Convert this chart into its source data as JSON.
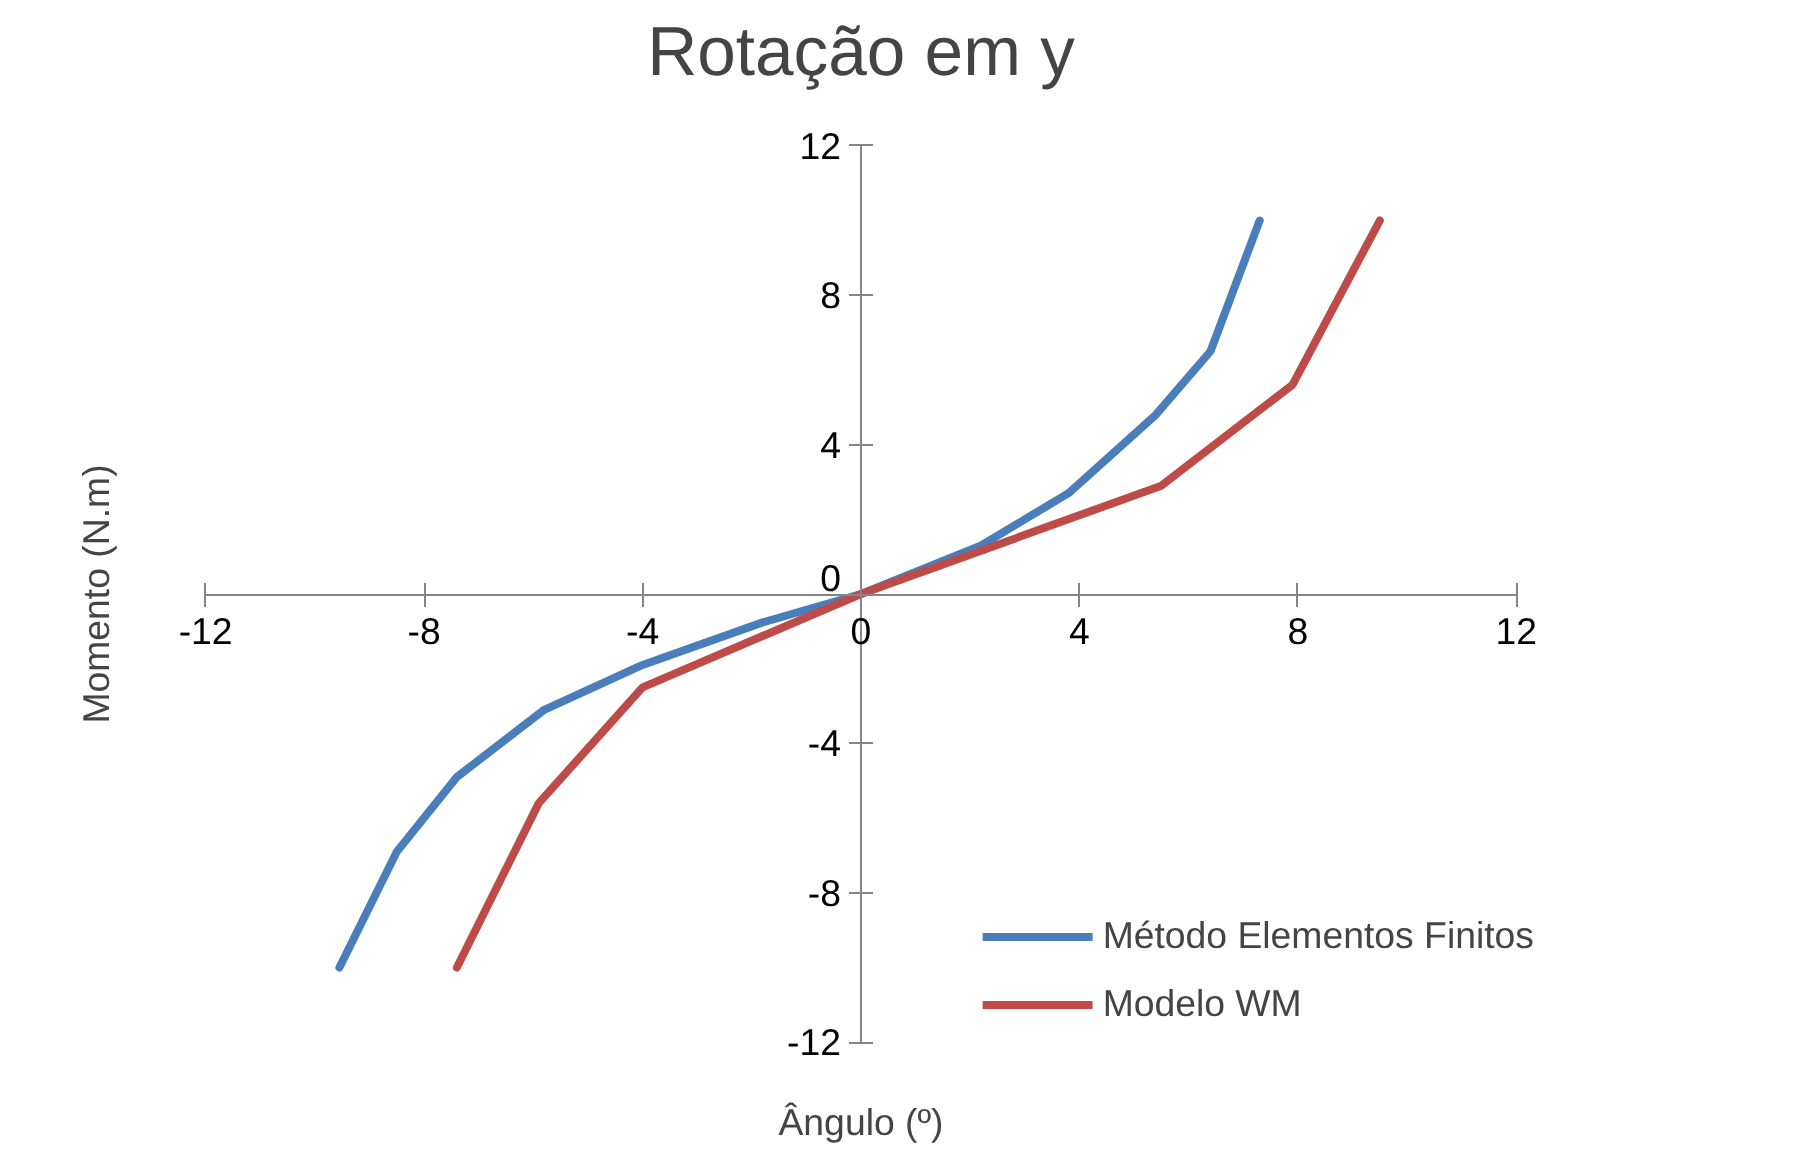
{
  "chart_data": {
    "type": "line",
    "title": "Rotação em y",
    "xlabel": "Ângulo (º)",
    "ylabel": "Momento (N.m)",
    "xlim": [
      -12,
      12
    ],
    "ylim": [
      -12,
      12
    ],
    "xticks": [
      -12,
      -8,
      -4,
      0,
      4,
      8,
      12
    ],
    "yticks": [
      -12,
      -8,
      -4,
      0,
      4,
      8,
      12
    ],
    "grid": false,
    "legend": "bottom right",
    "series": [
      {
        "name": "Método Elementos Finitos",
        "color": "#4a7ebb",
        "x": [
          -9.55,
          -8.5,
          -7.4,
          -5.8,
          -4.0,
          -1.8,
          0,
          2.2,
          3.8,
          5.4,
          6.4,
          7.3
        ],
        "values": [
          -10,
          -6.9,
          -4.9,
          -3.1,
          -1.9,
          -0.76,
          0,
          1.3,
          2.7,
          4.8,
          6.5,
          10
        ]
      },
      {
        "name": "Modelo WM",
        "color": "#be4b48",
        "x": [
          -7.4,
          -5.9,
          -4.0,
          0,
          5.5,
          7.9,
          9.5
        ],
        "values": [
          -10,
          -5.6,
          -2.5,
          0,
          2.9,
          5.6,
          10
        ]
      }
    ]
  }
}
